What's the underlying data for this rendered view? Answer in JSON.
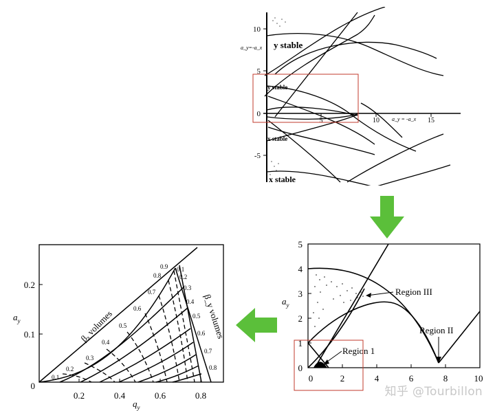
{
  "top_panel": {
    "axis_label": "a_y=-a_x",
    "x_axis_label": "a_y = -a_x",
    "y_ticks": [
      "10",
      "5",
      "0",
      "-5"
    ],
    "x_ticks": [
      "5",
      "10",
      "15"
    ],
    "region_labels": [
      "y stable",
      "y stable",
      "x stable",
      "x stable"
    ]
  },
  "right_panel": {
    "y_label": "a",
    "y_label_sub": "y",
    "y_ticks": [
      "0",
      "1",
      "2",
      "3",
      "4",
      "5"
    ],
    "x_ticks": [
      "0",
      "2",
      "4",
      "6",
      "8",
      "10"
    ],
    "annotations": [
      "Region III",
      "Region II",
      "Region 1"
    ]
  },
  "left_panel": {
    "y_label": "a",
    "y_label_sub": "y",
    "x_label": "q",
    "x_label_sub": "y",
    "y_ticks": [
      "0",
      "0.1",
      "0.2"
    ],
    "x_ticks": [
      "0.2",
      "0.4",
      "0.6",
      "0.8"
    ],
    "beta_x_label": "βₓ volumes",
    "beta_y_label": "β_y volumes",
    "beta_x_values": [
      "0.1",
      "0.2",
      "0.3",
      "0.4",
      "0.5",
      "0.6",
      "0.7",
      "0.8",
      "0.9"
    ],
    "beta_y_values": [
      "0.1",
      "0.2",
      "0.3",
      "0.4",
      "0.5",
      "0.6",
      "0.7",
      "0.8"
    ]
  },
  "watermark": "知乎 @Tourbillon",
  "colors": {
    "arrow": "#5bbf3a",
    "highlight_box": "#c0392b"
  }
}
